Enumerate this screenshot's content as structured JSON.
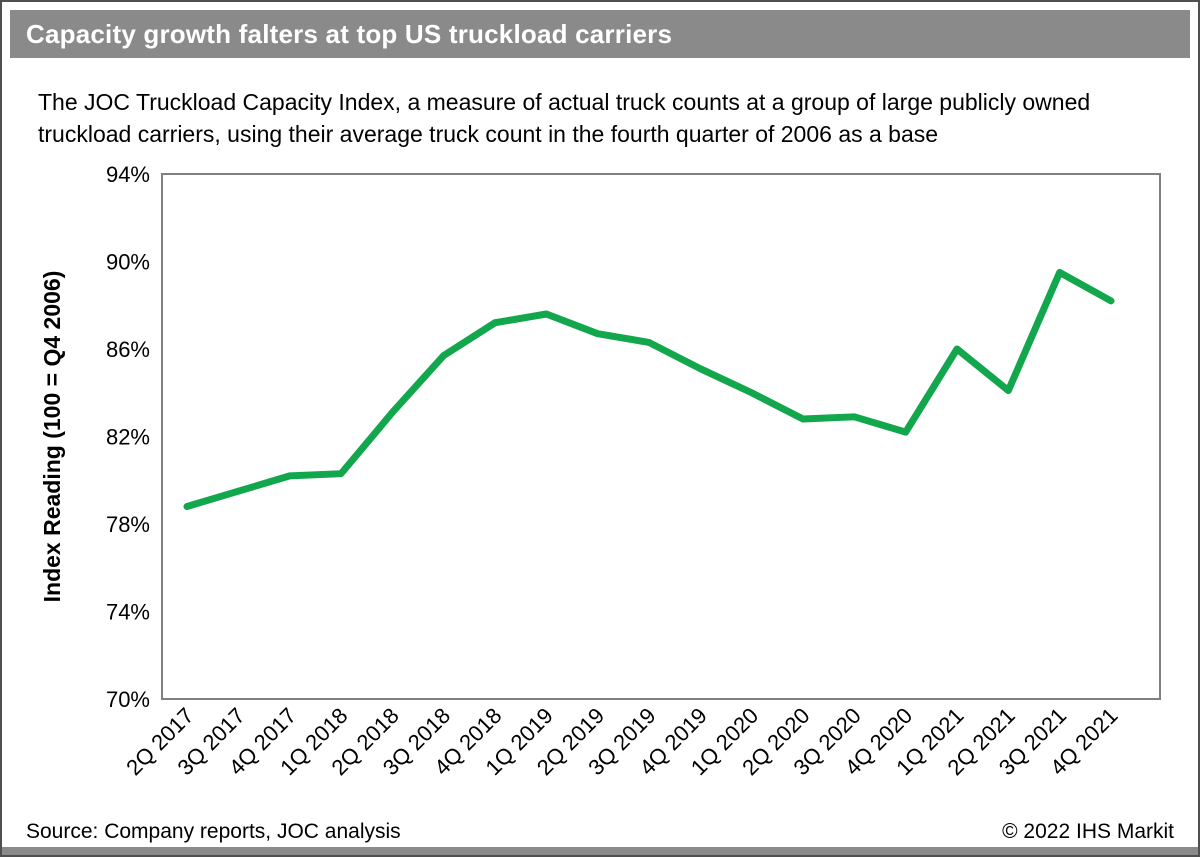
{
  "header": {
    "title": "Capacity growth falters at top US truckload carriers",
    "subtitle_line1": "The JOC Truckload Capacity Index, a measure of actual truck counts at a group of large publicly owned",
    "subtitle_line2": "truckload carriers, using their average truck count in the fourth quarter of 2006 as a base"
  },
  "footer": {
    "source": "Source: Company reports, JOC analysis",
    "copyright": "© 2022 IHS Markit"
  },
  "colors": {
    "title_bar_bg": "#8A8A8A",
    "title_text": "#FFFFFF",
    "line": "#12A74D",
    "plot_border": "#808080",
    "outer_border": "#4F4F4F",
    "bottom_bar": "#8A8A8A"
  },
  "chart_data": {
    "type": "line",
    "title": "Capacity growth falters at top US truckload carriers",
    "xlabel": "",
    "ylabel": "Index Reading (100 = Q4 2006)",
    "ylim": [
      70,
      94
    ],
    "yticks": [
      94,
      90,
      86,
      82,
      78,
      74,
      70
    ],
    "ytick_labels": [
      "94%",
      "90%",
      "86%",
      "82%",
      "78%",
      "74%",
      "70%"
    ],
    "grid": false,
    "legend": "none",
    "categories": [
      "2Q 2017",
      "3Q 2017",
      "4Q 2017",
      "1Q 2018",
      "2Q 2018",
      "3Q 2018",
      "4Q 2018",
      "1Q 2019",
      "2Q 2019",
      "3Q 2019",
      "4Q 2019",
      "1Q 2020",
      "2Q 2020",
      "3Q 2020",
      "4Q 2020",
      "1Q 2021",
      "2Q 2021",
      "3Q 2021",
      "4Q 2021"
    ],
    "values": [
      78.8,
      79.5,
      80.2,
      80.3,
      83.1,
      85.7,
      87.2,
      87.6,
      86.7,
      86.3,
      85.1,
      84.0,
      82.8,
      82.9,
      82.2,
      86.0,
      84.1,
      89.5,
      88.2
    ],
    "line_color": "#12A74D",
    "line_width": 7
  }
}
